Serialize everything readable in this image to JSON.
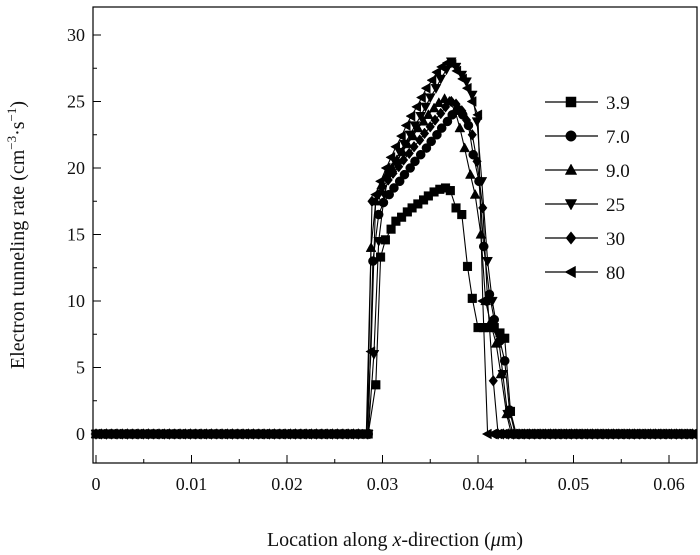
{
  "chart_data": {
    "type": "line",
    "title": "",
    "xlabel_parts": [
      "Location along ",
      "x",
      "-direction (",
      "μ",
      "m)"
    ],
    "ylabel_parts": [
      "Electron tunneling rate (cm",
      "−3",
      "·s",
      "−1",
      ")"
    ],
    "xlim": [
      0,
      0.0625
    ],
    "ylim": [
      -1,
      32.5
    ],
    "x_ticks": [
      0,
      0.01,
      0.02,
      0.03,
      0.04,
      0.05,
      0.06
    ],
    "x_tick_labels": [
      "0",
      "0.01",
      "0.02",
      "0.03",
      "0.04",
      "0.05",
      "0.06"
    ],
    "y_ticks": [
      0,
      5,
      10,
      15,
      20,
      25,
      30
    ],
    "y_tick_labels": [
      "0",
      "5",
      "10",
      "15",
      "20",
      "25",
      "30"
    ],
    "grid": false,
    "legend_position": "right",
    "series": [
      {
        "name": "3.9",
        "marker": "square",
        "x": [
          0.0285,
          0.0293,
          0.0298,
          0.0303,
          0.0309,
          0.0314,
          0.032,
          0.0326,
          0.0331,
          0.0337,
          0.0343,
          0.0348,
          0.0354,
          0.036,
          0.0366,
          0.0371,
          0.0377,
          0.0383,
          0.0389,
          0.0394,
          0.04,
          0.0406,
          0.0411,
          0.0417,
          0.0423,
          0.0428,
          0.0434,
          0.044
        ],
        "y": [
          0,
          3.7,
          13.3,
          14.6,
          15.4,
          16.0,
          16.3,
          16.7,
          17.0,
          17.3,
          17.6,
          17.9,
          18.2,
          18.4,
          18.5,
          18.3,
          17.0,
          16.5,
          12.6,
          10.2,
          8.0,
          8.0,
          8.0,
          8.0,
          7.6,
          7.2,
          1.7,
          0
        ]
      },
      {
        "name": "7.0",
        "marker": "circle",
        "x": [
          0.0285,
          0.029,
          0.0296,
          0.0301,
          0.0307,
          0.0312,
          0.0318,
          0.0323,
          0.0329,
          0.0334,
          0.034,
          0.0346,
          0.0351,
          0.0357,
          0.0362,
          0.0368,
          0.0373,
          0.0379,
          0.0384,
          0.039,
          0.0395,
          0.0401,
          0.0406,
          0.0412,
          0.0417,
          0.0423,
          0.0428,
          0.0433,
          0.0439
        ],
        "y": [
          0,
          13.0,
          16.5,
          17.4,
          18.0,
          18.5,
          19.0,
          19.5,
          20.0,
          20.5,
          21.0,
          21.5,
          22.0,
          22.5,
          23.0,
          23.5,
          24.0,
          24.4,
          24.0,
          23.2,
          21.0,
          19.0,
          14.1,
          10.5,
          8.6,
          7.0,
          5.5,
          1.8,
          0
        ]
      },
      {
        "name": "9.0",
        "marker": "triangle-up",
        "x": [
          0.0283,
          0.0288,
          0.0293,
          0.0299,
          0.0304,
          0.031,
          0.0315,
          0.0321,
          0.0326,
          0.0332,
          0.0337,
          0.0343,
          0.0348,
          0.0354,
          0.0359,
          0.0365,
          0.037,
          0.0376,
          0.0381,
          0.0386,
          0.0392,
          0.0397,
          0.0403,
          0.0408,
          0.0413,
          0.0419,
          0.0424,
          0.043,
          0.0435
        ],
        "y": [
          0,
          14.0,
          17.5,
          18.7,
          19.4,
          20.0,
          20.6,
          21.2,
          21.8,
          22.4,
          23.0,
          23.5,
          24.0,
          24.5,
          24.9,
          25.2,
          25.0,
          24.3,
          23.0,
          21.5,
          19.5,
          18.0,
          15.0,
          10.0,
          8.4,
          6.8,
          4.5,
          1.5,
          0
        ]
      },
      {
        "name": "25",
        "marker": "triangle-down",
        "x": [
          0.0285,
          0.0291,
          0.0296,
          0.0302,
          0.0307,
          0.0313,
          0.0318,
          0.0323,
          0.0329,
          0.0334,
          0.034,
          0.0345,
          0.035,
          0.0356,
          0.0361,
          0.0367,
          0.0372,
          0.0377,
          0.0383,
          0.0388,
          0.0394,
          0.0399,
          0.0404,
          0.041,
          0.0415,
          0.0421,
          0.0426,
          0.0431,
          0.0437
        ],
        "y": [
          0,
          6.0,
          14.5,
          18.0,
          19.5,
          20.5,
          21.2,
          21.8,
          22.5,
          23.2,
          23.9,
          24.6,
          25.3,
          26.0,
          26.7,
          27.4,
          28.0,
          27.6,
          27.0,
          26.5,
          25.5,
          23.5,
          19.0,
          13.0,
          10.0,
          7.5,
          4.5,
          1.5,
          0
        ]
      },
      {
        "name": "30",
        "marker": "diamond",
        "x": [
          0.0284,
          0.0289,
          0.0295,
          0.03,
          0.0306,
          0.0311,
          0.0317,
          0.0322,
          0.0328,
          0.0333,
          0.0339,
          0.0344,
          0.035,
          0.0355,
          0.0361,
          0.0366,
          0.0372,
          0.0377,
          0.0383,
          0.0388,
          0.0394,
          0.0399,
          0.0405,
          0.041,
          0.0416,
          0.0421
        ],
        "y": [
          0,
          17.5,
          18.0,
          18.6,
          19.1,
          19.6,
          20.1,
          20.6,
          21.1,
          21.6,
          22.1,
          22.6,
          23.1,
          23.6,
          24.1,
          24.6,
          25.0,
          24.8,
          24.3,
          23.6,
          22.5,
          20.5,
          17.0,
          10.0,
          4.0,
          0
        ]
      },
      {
        "name": "80",
        "marker": "triangle-left",
        "x": [
          0.0283,
          0.0288,
          0.0293,
          0.0298,
          0.0304,
          0.0309,
          0.0314,
          0.032,
          0.0325,
          0.033,
          0.0336,
          0.0341,
          0.0346,
          0.0352,
          0.0357,
          0.0362,
          0.0368,
          0.0373,
          0.0378,
          0.0384,
          0.0389,
          0.0394,
          0.04,
          0.0405,
          0.041
        ],
        "y": [
          0,
          6.2,
          18.0,
          19.0,
          20.0,
          20.8,
          21.6,
          22.4,
          23.2,
          23.9,
          24.6,
          25.3,
          26.0,
          26.6,
          27.2,
          27.6,
          27.9,
          27.8,
          27.3,
          26.7,
          26.0,
          25.0,
          24.0,
          10.0,
          0
        ]
      }
    ]
  }
}
